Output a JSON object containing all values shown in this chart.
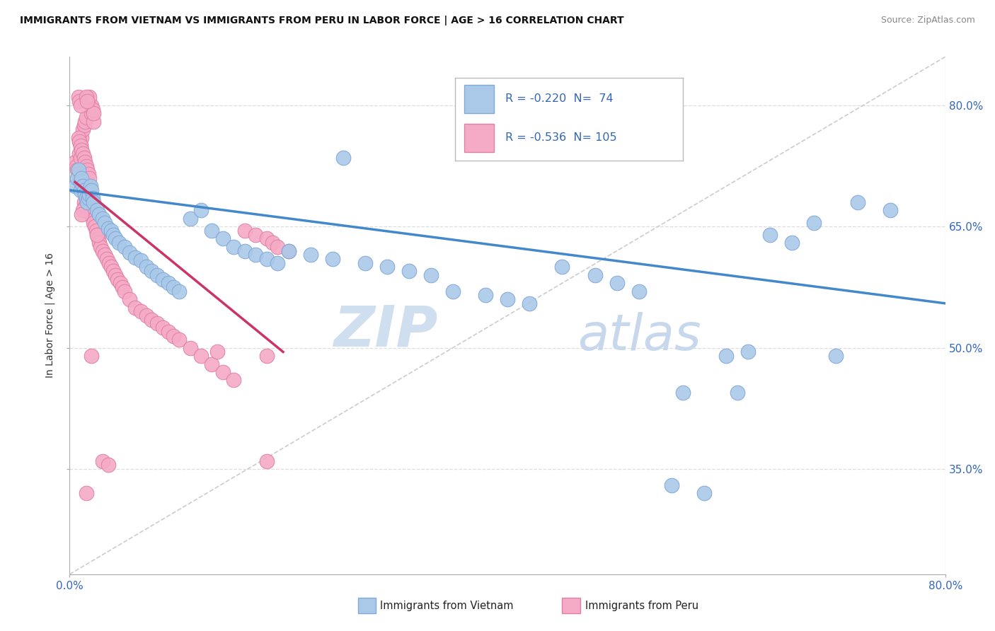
{
  "title": "IMMIGRANTS FROM VIETNAM VS IMMIGRANTS FROM PERU IN LABOR FORCE | AGE > 16 CORRELATION CHART",
  "source": "Source: ZipAtlas.com",
  "ylabel": "In Labor Force | Age > 16",
  "x_min": 0.0,
  "x_max": 0.8,
  "y_min": 0.22,
  "y_max": 0.86,
  "y_ticks": [
    0.35,
    0.5,
    0.65,
    0.8
  ],
  "y_tick_labels": [
    "35.0%",
    "50.0%",
    "65.0%",
    "80.0%"
  ],
  "color_vietnam": "#aac9e8",
  "color_peru": "#f5aac5",
  "trendline_vietnam_color": "#4488cc",
  "trendline_peru_color": "#cc3366",
  "diagonal_color": "#cccccc",
  "watermark_zip": "ZIP",
  "watermark_atlas": "atlas",
  "background_color": "#ffffff",
  "vietnam_trendline_x0": 0.0,
  "vietnam_trendline_y0": 0.695,
  "vietnam_trendline_x1": 0.8,
  "vietnam_trendline_y1": 0.555,
  "peru_trendline_x0": 0.005,
  "peru_trendline_y0": 0.705,
  "peru_trendline_x1": 0.195,
  "peru_trendline_y1": 0.495,
  "vietnam_x": [
    0.005,
    0.007,
    0.008,
    0.01,
    0.01,
    0.011,
    0.012,
    0.013,
    0.014,
    0.015,
    0.016,
    0.017,
    0.018,
    0.019,
    0.02,
    0.021,
    0.022,
    0.025,
    0.027,
    0.03,
    0.032,
    0.035,
    0.038,
    0.04,
    0.042,
    0.045,
    0.05,
    0.055,
    0.06,
    0.065,
    0.07,
    0.075,
    0.08,
    0.085,
    0.09,
    0.095,
    0.1,
    0.11,
    0.12,
    0.13,
    0.14,
    0.15,
    0.16,
    0.17,
    0.18,
    0.19,
    0.2,
    0.22,
    0.24,
    0.25,
    0.27,
    0.29,
    0.31,
    0.33,
    0.35,
    0.38,
    0.4,
    0.42,
    0.45,
    0.48,
    0.5,
    0.52,
    0.55,
    0.58,
    0.6,
    0.62,
    0.64,
    0.66,
    0.68,
    0.7,
    0.56,
    0.61,
    0.72,
    0.75
  ],
  "vietnam_y": [
    0.7,
    0.71,
    0.72,
    0.695,
    0.705,
    0.71,
    0.7,
    0.695,
    0.69,
    0.685,
    0.68,
    0.685,
    0.69,
    0.7,
    0.695,
    0.685,
    0.68,
    0.67,
    0.665,
    0.66,
    0.655,
    0.648,
    0.645,
    0.64,
    0.635,
    0.63,
    0.625,
    0.618,
    0.612,
    0.608,
    0.6,
    0.595,
    0.59,
    0.585,
    0.58,
    0.575,
    0.57,
    0.66,
    0.67,
    0.645,
    0.635,
    0.625,
    0.62,
    0.615,
    0.61,
    0.605,
    0.62,
    0.615,
    0.61,
    0.735,
    0.605,
    0.6,
    0.595,
    0.59,
    0.57,
    0.565,
    0.56,
    0.555,
    0.6,
    0.59,
    0.58,
    0.57,
    0.33,
    0.32,
    0.49,
    0.495,
    0.64,
    0.63,
    0.655,
    0.49,
    0.445,
    0.445,
    0.68,
    0.67
  ],
  "peru_x": [
    0.005,
    0.006,
    0.007,
    0.008,
    0.009,
    0.01,
    0.01,
    0.011,
    0.011,
    0.012,
    0.012,
    0.013,
    0.013,
    0.014,
    0.014,
    0.015,
    0.015,
    0.016,
    0.017,
    0.018,
    0.019,
    0.02,
    0.02,
    0.021,
    0.022,
    0.022,
    0.023,
    0.024,
    0.025,
    0.026,
    0.027,
    0.028,
    0.03,
    0.032,
    0.034,
    0.036,
    0.038,
    0.04,
    0.042,
    0.044,
    0.046,
    0.048,
    0.05,
    0.055,
    0.06,
    0.065,
    0.07,
    0.075,
    0.08,
    0.085,
    0.09,
    0.095,
    0.1,
    0.11,
    0.12,
    0.13,
    0.14,
    0.15,
    0.16,
    0.17,
    0.18,
    0.185,
    0.19,
    0.2,
    0.008,
    0.009,
    0.01,
    0.011,
    0.012,
    0.013,
    0.014,
    0.015,
    0.016,
    0.017,
    0.018,
    0.015,
    0.016,
    0.017,
    0.018,
    0.013,
    0.014,
    0.012,
    0.011,
    0.02,
    0.021,
    0.022,
    0.008,
    0.009,
    0.01,
    0.018,
    0.015,
    0.016,
    0.025,
    0.03,
    0.035,
    0.135,
    0.18,
    0.015,
    0.18,
    0.02
  ],
  "peru_y": [
    0.73,
    0.725,
    0.72,
    0.715,
    0.74,
    0.735,
    0.75,
    0.71,
    0.76,
    0.705,
    0.77,
    0.7,
    0.775,
    0.695,
    0.78,
    0.69,
    0.785,
    0.685,
    0.68,
    0.675,
    0.67,
    0.665,
    0.79,
    0.66,
    0.655,
    0.78,
    0.65,
    0.645,
    0.64,
    0.635,
    0.63,
    0.625,
    0.62,
    0.615,
    0.61,
    0.605,
    0.6,
    0.595,
    0.59,
    0.585,
    0.58,
    0.575,
    0.57,
    0.56,
    0.55,
    0.545,
    0.54,
    0.535,
    0.53,
    0.525,
    0.52,
    0.515,
    0.51,
    0.5,
    0.49,
    0.48,
    0.47,
    0.46,
    0.645,
    0.64,
    0.635,
    0.63,
    0.625,
    0.62,
    0.76,
    0.755,
    0.75,
    0.745,
    0.74,
    0.735,
    0.73,
    0.725,
    0.72,
    0.715,
    0.71,
    0.7,
    0.695,
    0.69,
    0.685,
    0.68,
    0.675,
    0.67,
    0.665,
    0.8,
    0.795,
    0.79,
    0.81,
    0.805,
    0.8,
    0.81,
    0.81,
    0.805,
    0.64,
    0.36,
    0.355,
    0.495,
    0.49,
    0.32,
    0.36,
    0.49
  ]
}
